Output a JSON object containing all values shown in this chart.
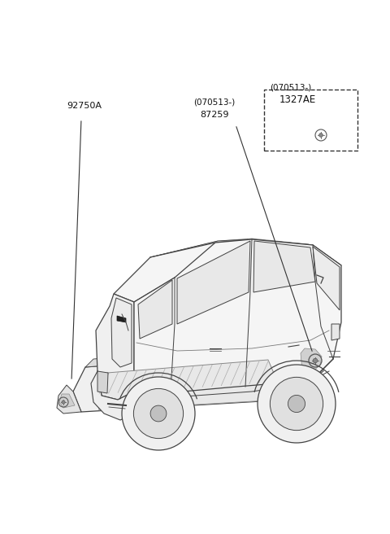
{
  "background_color": "#ffffff",
  "fig_width": 4.8,
  "fig_height": 6.56,
  "dpi": 100,
  "labels": {
    "part1": "92750A",
    "part2_line1": "(070513-)",
    "part2_line2": "87259",
    "part3_line1": "(070513-)",
    "part3_line2": "1327AE"
  }
}
